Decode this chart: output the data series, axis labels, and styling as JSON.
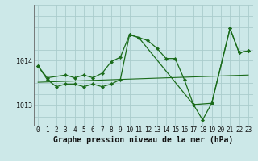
{
  "bg_color": "#cce8e8",
  "grid_color": "#aacccc",
  "line_color": "#1a6b1a",
  "title": "Graphe pression niveau de la mer (hPa)",
  "yticks": [
    1013,
    1014
  ],
  "xlim": [
    -0.5,
    23.5
  ],
  "ylim": [
    1012.55,
    1015.25
  ],
  "s1_x": [
    0,
    1,
    3,
    4,
    5,
    6,
    7,
    8,
    9,
    10,
    11,
    12,
    13,
    14,
    15,
    16,
    17,
    19,
    21,
    22,
    23
  ],
  "s1_y": [
    1013.88,
    1013.62,
    1013.68,
    1013.62,
    1013.68,
    1013.62,
    1013.72,
    1013.98,
    1014.08,
    1014.58,
    1014.52,
    1014.45,
    1014.28,
    1014.05,
    1014.05,
    1013.58,
    1013.02,
    1013.05,
    1014.72,
    1014.18,
    1014.22
  ],
  "s2_x": [
    0,
    1,
    2,
    3,
    4,
    5,
    6,
    7,
    8,
    9,
    10,
    11,
    17,
    18,
    19,
    21,
    22,
    23
  ],
  "s2_y": [
    1013.88,
    1013.58,
    1013.42,
    1013.48,
    1013.48,
    1013.42,
    1013.48,
    1013.42,
    1013.48,
    1013.58,
    1014.58,
    1014.52,
    1013.02,
    1012.68,
    1013.05,
    1014.72,
    1014.18,
    1014.22
  ],
  "trend_x": [
    0,
    23
  ],
  "trend_y": [
    1013.52,
    1013.68
  ],
  "title_fontsize": 7.0,
  "tick_fontsize": 5.5
}
